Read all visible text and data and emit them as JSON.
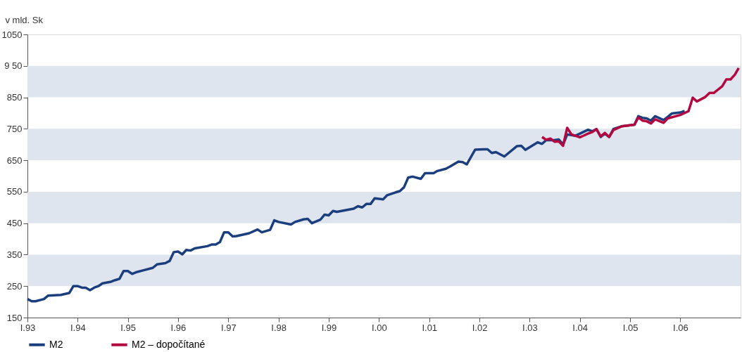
{
  "chart_data": {
    "type": "line",
    "ylabel": "v mld. Sk",
    "xlim": [
      "1993-01",
      "2007-03-15"
    ],
    "xticks": [
      {
        "value": "1993-01",
        "label": "I.93"
      },
      {
        "value": "1994-01",
        "label": "I.94"
      },
      {
        "value": "1995-01",
        "label": "I.95"
      },
      {
        "value": "1996-01",
        "label": "I.96"
      },
      {
        "value": "1997-01",
        "label": "I.97"
      },
      {
        "value": "1998-01",
        "label": "I.98"
      },
      {
        "value": "1999-01",
        "label": "I.99"
      },
      {
        "value": "2000-01",
        "label": "I.00"
      },
      {
        "value": "2001-01",
        "label": "I.01"
      },
      {
        "value": "2002-01",
        "label": "I.02"
      },
      {
        "value": "2003-01",
        "label": "I.03"
      },
      {
        "value": "2004-01",
        "label": "I.04"
      },
      {
        "value": "2005-01",
        "label": "I.05"
      },
      {
        "value": "2006-01",
        "label": "I.06"
      }
    ],
    "ylim": [
      150,
      1050
    ],
    "yticks": [
      150,
      250,
      350,
      450,
      550,
      650,
      750,
      850,
      {
        "value": 950,
        "label": "9 50"
      },
      1050
    ],
    "grid": false,
    "legend": "bottom",
    "line_style": "solid",
    "marker": "none",
    "bands": [
      {
        "axis": "y",
        "from": 250,
        "to": 350,
        "color": "#dfe5ef"
      },
      {
        "axis": "y",
        "from": 450,
        "to": 550,
        "color": "#dfe5ef"
      },
      {
        "axis": "y",
        "from": 650,
        "to": 750,
        "color": "#dfe5ef"
      },
      {
        "axis": "y",
        "from": 850,
        "to": 950,
        "color": "#dfe5ef"
      }
    ],
    "series": [
      {
        "name": "M2",
        "color": "#1b3f7e",
        "x": [
          "1993-01",
          "1993-02",
          "1993-03",
          "1993-05",
          "1993-06",
          "1993-09",
          "1993-11",
          "1993-12",
          "1994-01",
          "1994-02",
          "1994-03",
          "1994-04",
          "1994-05",
          "1994-06",
          "1994-07",
          "1994-09",
          "1994-10",
          "1994-11",
          "1994-12",
          "1995-01",
          "1995-02",
          "1995-03",
          "1995-05",
          "1995-07",
          "1995-08",
          "1995-10",
          "1995-11",
          "1995-12",
          "1996-01",
          "1996-02",
          "1996-03",
          "1996-04",
          "1996-05",
          "1996-08",
          "1996-09",
          "1996-10",
          "1996-11",
          "1996-12",
          "1997-01",
          "1997-02",
          "1997-03",
          "1997-06",
          "1997-08",
          "1997-09",
          "1997-11",
          "1997-12",
          "1998-01",
          "1998-04",
          "1998-05",
          "1998-07",
          "1998-08",
          "1998-09",
          "1998-11",
          "1998-12",
          "1999-01",
          "1999-02",
          "1999-03",
          "1999-07",
          "1999-08",
          "1999-09",
          "1999-10",
          "1999-11",
          "1999-12",
          "2000-02",
          "2000-03",
          "2000-05",
          "2000-06",
          "2000-07",
          "2000-08",
          "2000-09",
          "2000-11",
          "2000-12",
          "2001-02",
          "2001-03",
          "2001-05",
          "2001-06",
          "2001-08",
          "2001-09",
          "2001-10",
          "2001-11",
          "2001-12",
          "2002-02",
          "2002-03",
          "2002-04",
          "2002-05",
          "2002-07",
          "2002-10",
          "2002-11",
          "2002-12",
          "2003-03",
          "2003-04",
          "2003-05",
          "2003-07",
          "2003-08",
          "2003-09",
          "2003-10",
          "2003-12",
          "2004-03",
          "2004-04",
          "2004-05",
          "2004-06",
          "2004-07",
          "2004-08",
          "2004-09",
          "2004-11",
          "2005-02",
          "2005-03",
          "2005-04",
          "2005-05",
          "2005-06",
          "2005-07",
          "2005-09",
          "2005-10",
          "2005-11",
          "2006-01",
          "2006-02"
        ],
        "values": [
          209,
          202,
          202,
          209,
          220,
          222,
          228,
          250,
          250,
          245,
          245,
          237,
          245,
          250,
          259,
          264,
          269,
          273,
          298,
          298,
          289,
          294,
          301,
          308,
          319,
          323,
          330,
          358,
          360,
          351,
          365,
          363,
          370,
          377,
          382,
          382,
          390,
          421,
          421,
          408,
          409,
          418,
          430,
          421,
          429,
          459,
          454,
          446,
          454,
          462,
          464,
          450,
          461,
          477,
          475,
          489,
          486,
          496,
          504,
          500,
          511,
          511,
          529,
          526,
          539,
          548,
          552,
          564,
          595,
          598,
          591,
          609,
          609,
          616,
          623,
          630,
          646,
          644,
          637,
          661,
          684,
          685,
          685,
          673,
          676,
          662,
          695,
          696,
          683,
          707,
          702,
          714,
          714,
          716,
          700,
          732,
          728,
          747,
          742,
          749,
          724,
          735,
          724,
          749,
          758,
          763,
          790,
          785,
          783,
          776,
          790,
          778,
          788,
          799,
          802,
          807
        ]
      },
      {
        "name": "M2 – dopočítané",
        "color": "#b5073f",
        "x": [
          "2003-04",
          "2003-05",
          "2003-06",
          "2003-07",
          "2003-08",
          "2003-09",
          "2003-10",
          "2003-11",
          "2004-01",
          "2004-02",
          "2004-03",
          "2004-04",
          "2004-05",
          "2004-06",
          "2004-07",
          "2004-08",
          "2004-09",
          "2004-11",
          "2005-02",
          "2005-03",
          "2005-04",
          "2005-05",
          "2005-06",
          "2005-07",
          "2005-09",
          "2005-10",
          "2006-01",
          "2006-03",
          "2006-04",
          "2006-05",
          "2006-07",
          "2006-08",
          "2006-09",
          "2006-11",
          "2006-12",
          "2007-01",
          "2007-02",
          "2007-03"
        ],
        "values": [
          724,
          715,
          719,
          709,
          710,
          696,
          753,
          732,
          723,
          729,
          735,
          740,
          749,
          726,
          737,
          724,
          746,
          758,
          763,
          786,
          776,
          774,
          767,
          780,
          769,
          783,
          794,
          806,
          849,
          837,
          851,
          864,
          864,
          885,
          907,
          907,
          922,
          943
        ]
      }
    ]
  }
}
